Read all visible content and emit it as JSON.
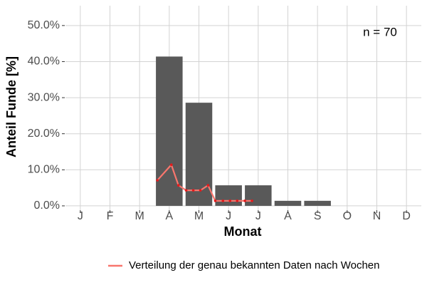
{
  "chart_data": {
    "type": "bar",
    "categories": [
      "J",
      "F",
      "M",
      "A",
      "M",
      "J",
      "J",
      "A",
      "S",
      "O",
      "N",
      "D"
    ],
    "values": [
      0,
      0,
      0,
      41.4,
      28.6,
      5.7,
      5.7,
      1.4,
      1.4,
      0,
      0,
      0
    ],
    "color": "#595959",
    "xlabel": "Monat",
    "ylabel": "Anteil Funde [%]",
    "annotation": "n = 70",
    "xlim": [
      0.5,
      12.5
    ],
    "ylim": [
      -1.2,
      55.5
    ],
    "yticks": [
      {
        "value": 0,
        "label": "0.0%"
      },
      {
        "value": 10,
        "label": "10.0%"
      },
      {
        "value": 20,
        "label": "20.0%"
      },
      {
        "value": 30,
        "label": "30.0%"
      },
      {
        "value": 40,
        "label": "40.0%"
      },
      {
        "value": 50,
        "label": "50.0%"
      }
    ],
    "grid": true,
    "legend": "bottom",
    "lines": [
      {
        "type": "line",
        "name": "Verteilung der genau bekannten Daten nach Wochen",
        "color": "#f8766d",
        "x": [
          3.6,
          4.07,
          4.31,
          4.57,
          4.81,
          5.05,
          5.31,
          5.55,
          5.81,
          6.05,
          6.29,
          6.55,
          6.79
        ],
        "values": [
          7.1,
          11.4,
          5.7,
          4.3,
          4.3,
          4.3,
          5.7,
          1.4,
          1.4,
          1.4,
          1.4,
          1.4,
          1.4
        ]
      }
    ]
  }
}
